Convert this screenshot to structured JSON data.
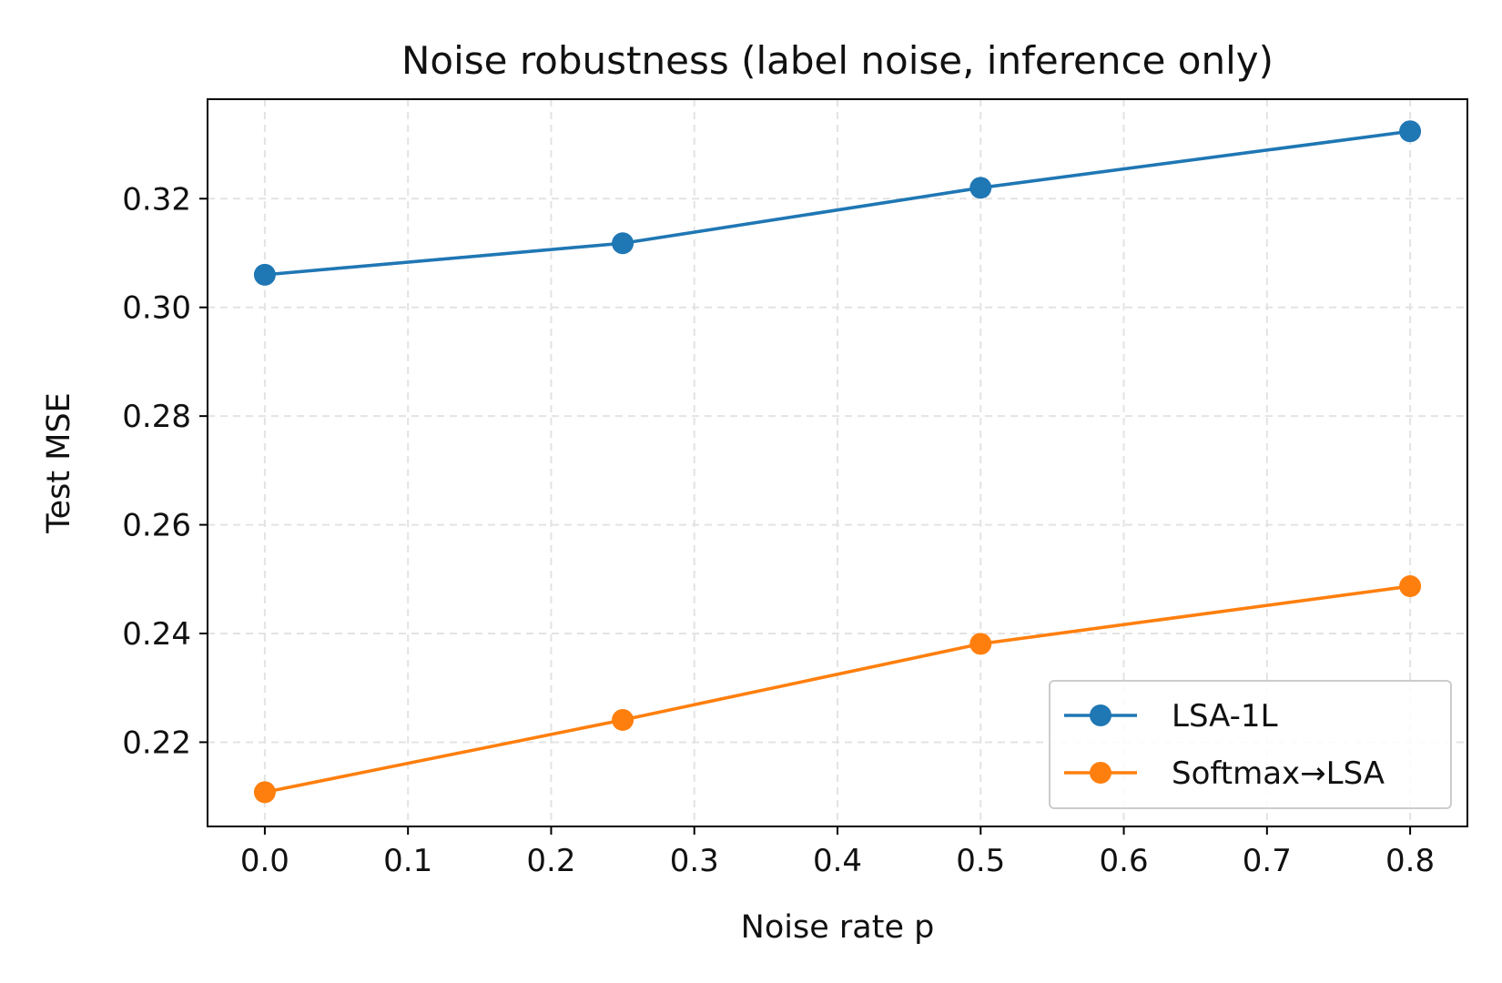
{
  "chart_data": {
    "type": "line",
    "title": "Noise robustness (label noise, inference only)",
    "xlabel": "Noise rate p",
    "ylabel": "Test MSE",
    "x": [
      0.0,
      0.25,
      0.5,
      0.8
    ],
    "series": [
      {
        "name": "LSA-1L",
        "color": "#1f77b4",
        "values": [
          0.306,
          0.3118,
          0.322,
          0.3324
        ]
      },
      {
        "name": "Softmax→LSA",
        "color": "#ff7f0e",
        "values": [
          0.2108,
          0.2241,
          0.2381,
          0.2487
        ]
      }
    ],
    "xlim": [
      -0.04,
      0.84
    ],
    "ylim": [
      0.2045,
      0.3383
    ],
    "xticks": [
      "0.0",
      "0.1",
      "0.2",
      "0.3",
      "0.4",
      "0.5",
      "0.6",
      "0.7",
      "0.8"
    ],
    "yticks": [
      "0.22",
      "0.24",
      "0.26",
      "0.28",
      "0.30",
      "0.32"
    ],
    "grid": true,
    "grid_style": "dashed",
    "legend_position": "lower-right"
  }
}
